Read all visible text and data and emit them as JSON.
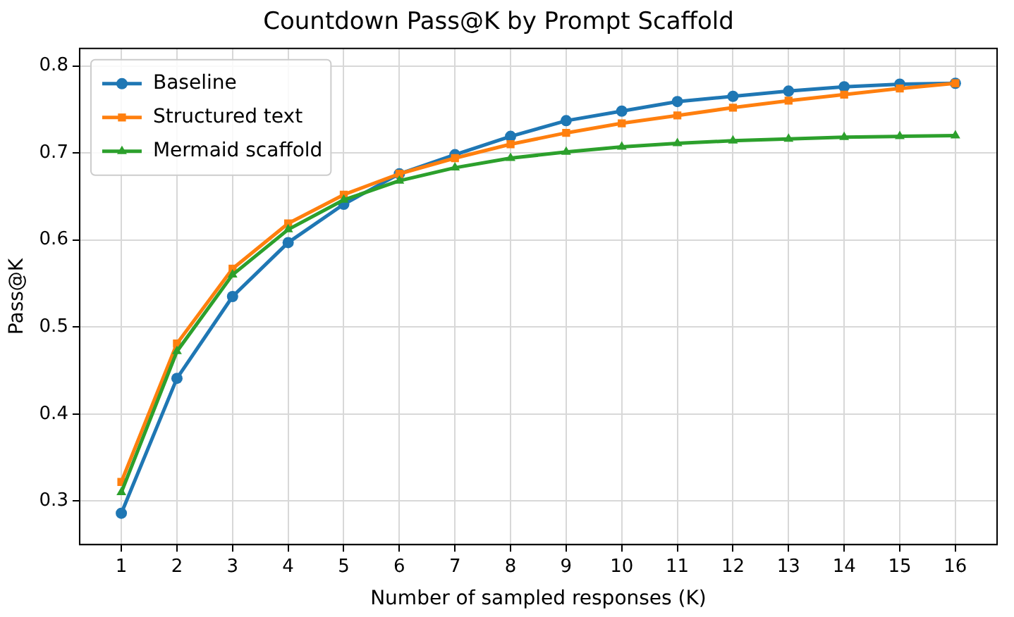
{
  "chart_data": {
    "type": "line",
    "title": "Countdown Pass@K by Prompt Scaffold",
    "xlabel": "Number of sampled responses (K)",
    "ylabel": "Pass@K",
    "x": [
      1,
      2,
      3,
      4,
      5,
      6,
      7,
      8,
      9,
      10,
      11,
      12,
      13,
      14,
      15,
      16
    ],
    "xlim": [
      0.25,
      16.75
    ],
    "xticks": [
      1,
      2,
      3,
      4,
      5,
      6,
      7,
      8,
      9,
      10,
      11,
      12,
      13,
      14,
      15,
      16
    ],
    "ylim": [
      0.25,
      0.82
    ],
    "yticks": [
      0.3,
      0.4,
      0.5,
      0.6,
      0.7,
      0.8
    ],
    "grid": true,
    "legend": "top left",
    "line_style": "solid",
    "series": [
      {
        "name": "Baseline",
        "color": "#1f77b4",
        "marker": "circle",
        "values": [
          0.286,
          0.441,
          0.535,
          0.597,
          0.641,
          0.676,
          0.698,
          0.719,
          0.737,
          0.748,
          0.759,
          0.765,
          0.771,
          0.776,
          0.779,
          0.78
        ]
      },
      {
        "name": "Structured text",
        "color": "#ff7f0e",
        "marker": "square",
        "values": [
          0.322,
          0.481,
          0.567,
          0.619,
          0.652,
          0.676,
          0.694,
          0.71,
          0.723,
          0.734,
          0.743,
          0.752,
          0.76,
          0.767,
          0.774,
          0.78
        ]
      },
      {
        "name": "Mermaid scaffold",
        "color": "#2ca02c",
        "marker": "triangle",
        "values": [
          0.31,
          0.472,
          0.56,
          0.612,
          0.646,
          0.668,
          0.683,
          0.694,
          0.701,
          0.707,
          0.711,
          0.714,
          0.716,
          0.718,
          0.719,
          0.72
        ]
      }
    ]
  }
}
